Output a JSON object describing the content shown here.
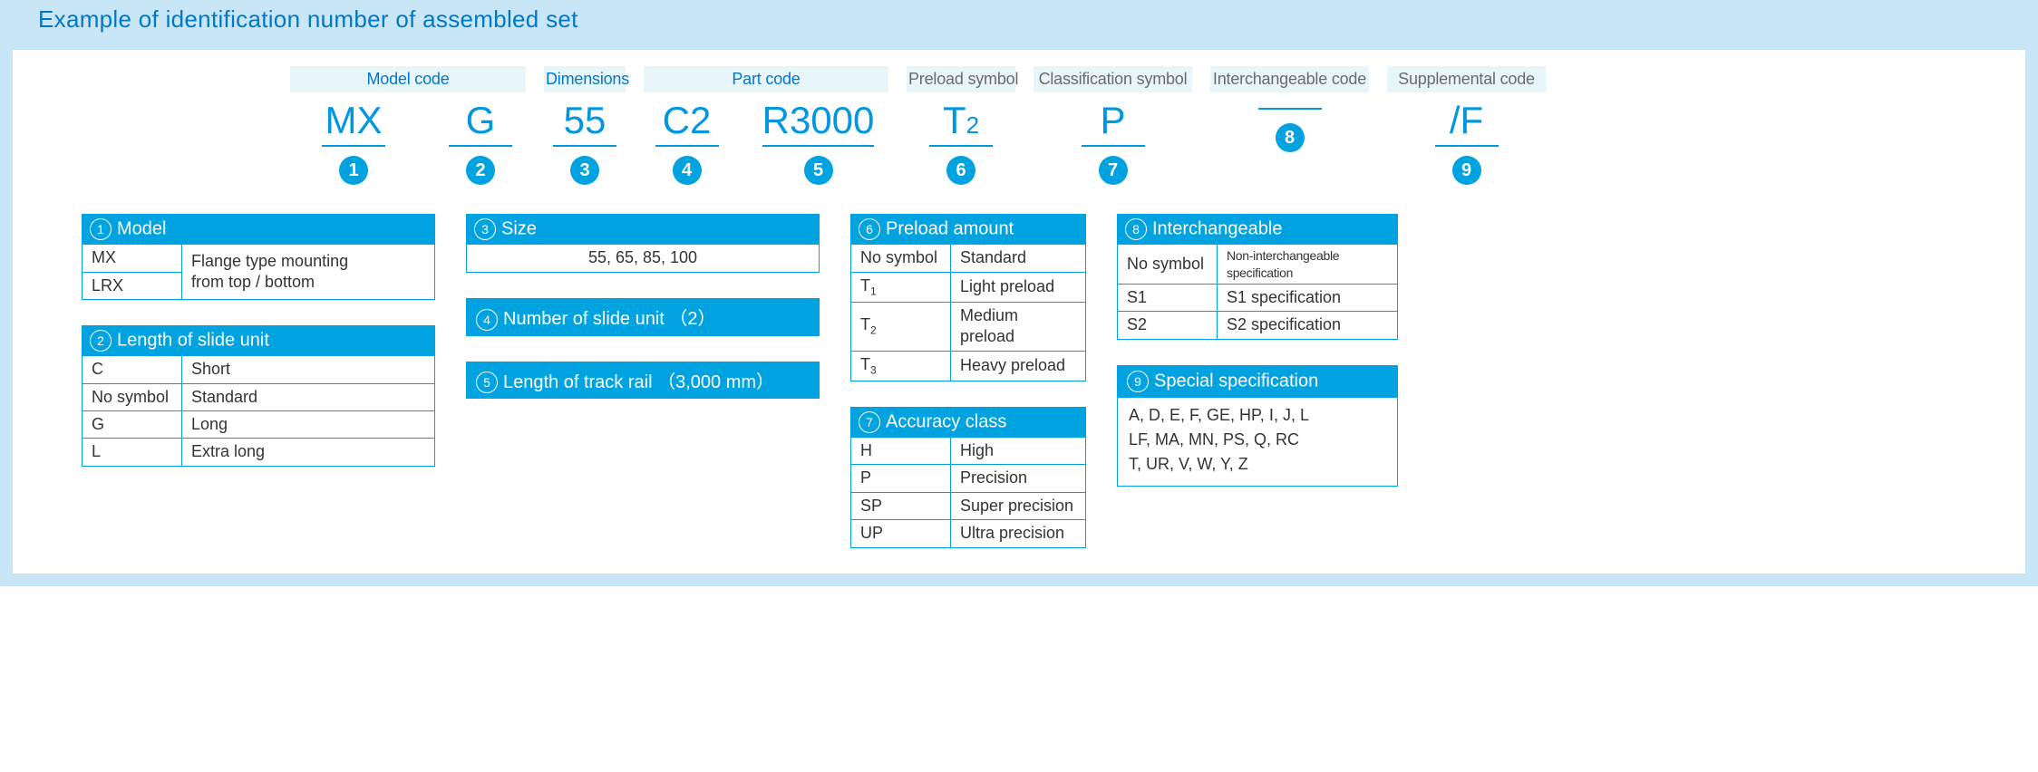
{
  "colors": {
    "border": "#c9e6f6",
    "primary": "#00a3e0",
    "title": "#0078c8",
    "codeText": "#0096e0",
    "chipBg": "#e8f5fb",
    "greyText": "#6b6b6b"
  },
  "title": "Example of identification number of assembled set",
  "headerLabels": {
    "modelCode": "Model code",
    "dimensions": "Dimensions",
    "partCode": "Part code",
    "preloadSymbol": "Preload symbol",
    "classificationSymbol": "Classification symbol",
    "interchangeableCode": "Interchangeable code",
    "supplementalCode": "Supplemental code"
  },
  "codes": {
    "c1": "MX",
    "c2": "G",
    "c3": "55",
    "c4": "C2",
    "c5": "R3000",
    "c6": "T",
    "c6sub": "2",
    "c7": "P",
    "c8": "",
    "c9": "/F"
  },
  "badges": [
    "1",
    "2",
    "3",
    "4",
    "5",
    "6",
    "7",
    "8",
    "9"
  ],
  "boxes": {
    "model": {
      "num": "1",
      "title": "Model",
      "rows": [
        [
          "MX",
          "Flange type mounting"
        ],
        [
          "LRX",
          "from top / bottom"
        ]
      ]
    },
    "length": {
      "num": "2",
      "title": "Length of slide unit",
      "rows": [
        [
          "C",
          "Short"
        ],
        [
          "No symbol",
          "Standard"
        ],
        [
          "G",
          "Long"
        ],
        [
          "L",
          "Extra long"
        ]
      ]
    },
    "size": {
      "num": "3",
      "title": "Size",
      "value": "55, 65, 85, 100"
    },
    "numSlide": {
      "num": "4",
      "title": "Number of slide unit （2）"
    },
    "trackRail": {
      "num": "5",
      "title": "Length of track rail （3,000 mm）"
    },
    "preload": {
      "num": "6",
      "title": "Preload amount",
      "rows": [
        [
          "No symbol",
          "Standard"
        ],
        [
          "T1",
          "Light preload"
        ],
        [
          "T2",
          "Medium preload"
        ],
        [
          "T3",
          "Heavy preload"
        ]
      ]
    },
    "accuracy": {
      "num": "7",
      "title": "Accuracy class",
      "rows": [
        [
          "H",
          "High"
        ],
        [
          "P",
          "Precision"
        ],
        [
          "SP",
          "Super precision"
        ],
        [
          "UP",
          "Ultra precision"
        ]
      ]
    },
    "interchange": {
      "num": "8",
      "title": "Interchangeable",
      "rows": [
        [
          "No symbol",
          "Non-interchangeable specification"
        ],
        [
          "S1",
          "S1 specification"
        ],
        [
          "S2",
          "S2 specification"
        ]
      ]
    },
    "special": {
      "num": "9",
      "title": "Special specification",
      "lines": [
        "A, D, E, F, GE, HP, Ⅰ, J, L",
        "LF, MA, MN, PS, Q, RC",
        "T, UR, V, W, Y, Z"
      ]
    }
  }
}
